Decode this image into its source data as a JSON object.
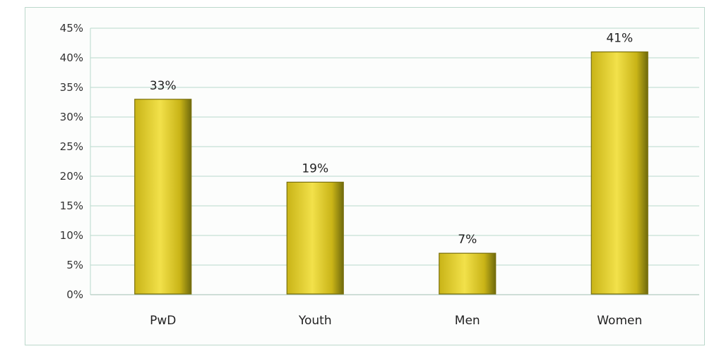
{
  "chart_data": {
    "type": "bar",
    "categories": [
      "PwD",
      "Youth",
      "Men",
      "Women"
    ],
    "values": [
      33,
      19,
      7,
      41
    ],
    "data_labels": [
      "33%",
      "19%",
      "7%",
      "41%"
    ],
    "ylim": [
      0,
      45
    ],
    "yticks": [
      0,
      5,
      10,
      15,
      20,
      25,
      30,
      35,
      40,
      45
    ],
    "ytick_labels": [
      "0%",
      "5%",
      "10%",
      "15%",
      "20%",
      "25%",
      "30%",
      "35%",
      "40%",
      "45%"
    ],
    "grid": true,
    "legend": "none",
    "colors": {
      "bar_light": "#f2e14a",
      "bar_mid": "#c9b417",
      "bar_dark": "#6f6a0c",
      "grid": "#b9d9cc",
      "frame": "#bcd8cc"
    }
  }
}
